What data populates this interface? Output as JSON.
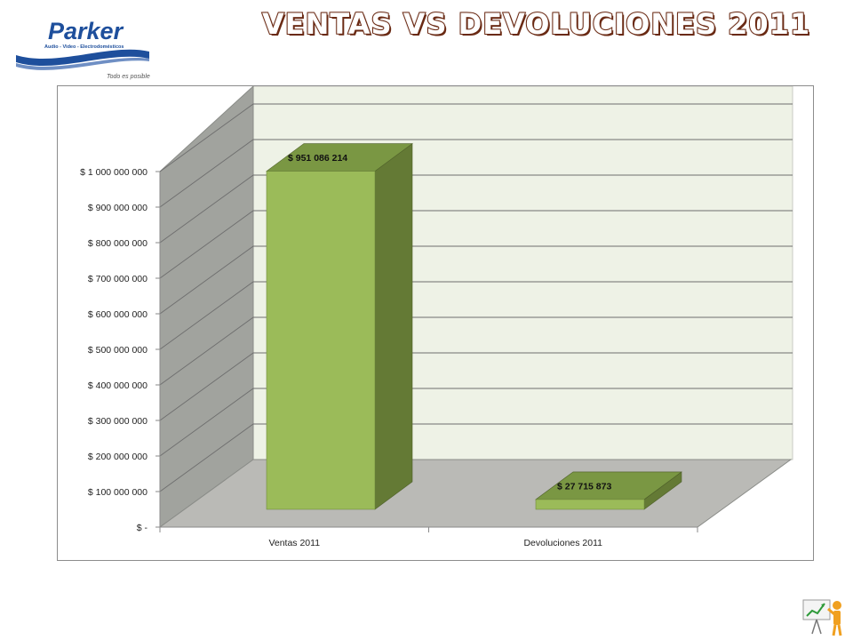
{
  "page": {
    "title": "VENTAS VS DEVOLUCIONES  2011",
    "logo": {
      "brand": "Parker",
      "tagline": "Audio - Video - Electrodomésticos",
      "slogan": "Todo es posible"
    },
    "corner_icon": "presenter-chart-icon"
  },
  "colors": {
    "bar_front": "#9bbb59",
    "bar_side": "#647a35",
    "bar_top": "#7a9743",
    "back_wall": "#eef2e6",
    "side_wall": "#a1a39e",
    "floor": "#babab6",
    "title_outline": "#6a2a14",
    "logo_blue": "#1e4f9c"
  },
  "chart_data": {
    "type": "bar",
    "title": "",
    "xlabel": "",
    "ylabel": "",
    "categories": [
      "Ventas 2011",
      "Devoluciones 2011"
    ],
    "values": [
      951086214,
      27715873
    ],
    "data_labels": [
      "$ 951 086 214",
      "$ 27 715 873"
    ],
    "ylim": [
      0,
      1000000000
    ],
    "yticks": [
      0,
      100000000,
      200000000,
      300000000,
      400000000,
      500000000,
      600000000,
      700000000,
      800000000,
      900000000,
      1000000000
    ],
    "ytick_labels": [
      "$ -",
      "$ 100 000 000",
      "$ 200 000 000",
      "$ 300 000 000",
      "$ 400 000 000",
      "$ 500 000 000",
      "$ 600 000 000",
      "$ 700 000 000",
      "$ 800 000 000",
      "$ 900 000 000",
      "$ 1 000 000 000"
    ],
    "grid": true,
    "legend": "none",
    "style": "3d-column"
  }
}
